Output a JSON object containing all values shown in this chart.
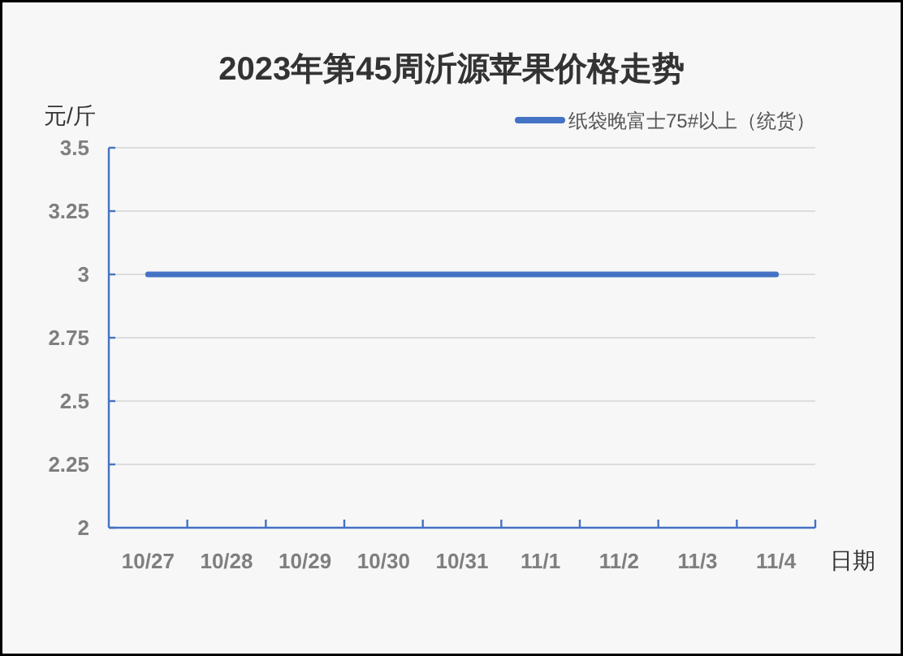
{
  "chart_data": {
    "type": "line",
    "title": "2023年第45周沂源苹果价格走势",
    "xlabel": "日期",
    "ylabel": "元/斤",
    "categories": [
      "10/27",
      "10/28",
      "10/29",
      "10/30",
      "10/31",
      "11/1",
      "11/2",
      "11/3",
      "11/4"
    ],
    "series": [
      {
        "name": "纸袋晚富士75#以上（统货）",
        "color": "#4472c4",
        "values": [
          3,
          3,
          3,
          3,
          3,
          3,
          3,
          3,
          3
        ]
      }
    ],
    "ylim": [
      2,
      3.5
    ],
    "yticks": [
      2,
      2.25,
      2.5,
      2.75,
      3,
      3.25,
      3.5
    ],
    "grid": "y",
    "legend": "top right"
  }
}
